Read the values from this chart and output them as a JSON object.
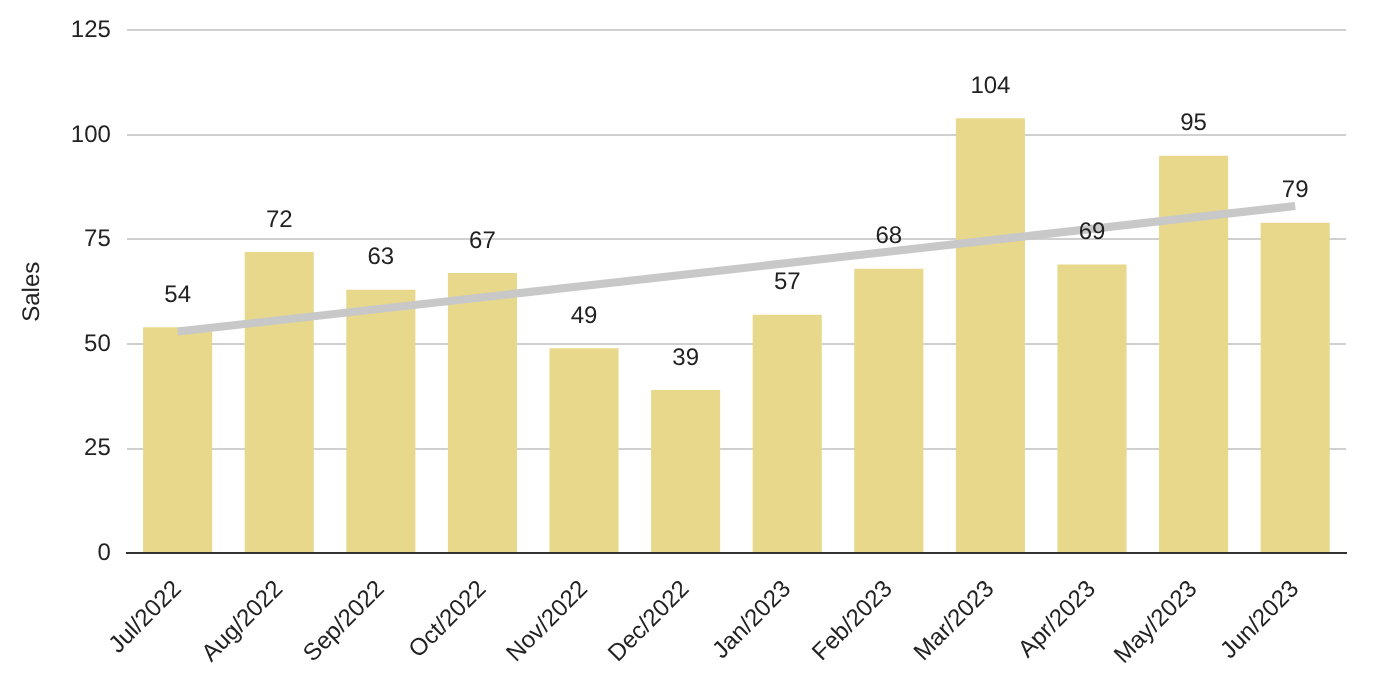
{
  "chart_data": {
    "type": "bar",
    "ylabel": "Sales",
    "categories": [
      "Jul/2022",
      "Aug/2022",
      "Sep/2022",
      "Oct/2022",
      "Nov/2022",
      "Dec/2022",
      "Jan/2023",
      "Feb/2023",
      "Mar/2023",
      "Apr/2023",
      "May/2023",
      "Jun/2023"
    ],
    "series": [
      {
        "color": "#e8d88c",
        "values": [
          54,
          72,
          63,
          67,
          49,
          39,
          57,
          68,
          104,
          69,
          95,
          79
        ],
        "value_labels": [
          "54",
          "72",
          "63",
          "67",
          "49",
          "39",
          "57",
          "68",
          "104",
          "69",
          "95",
          "79"
        ]
      },
      {
        "type": "line",
        "color": "#c8c8c8",
        "x": [
          "Jul/2022",
          "Jun/2023"
        ],
        "values": [
          53,
          83
        ]
      }
    ],
    "ylim": [
      0,
      125
    ],
    "yticks": [
      0,
      25,
      50,
      75,
      100,
      125
    ],
    "grid": "y",
    "legend": false,
    "marker": "none"
  }
}
